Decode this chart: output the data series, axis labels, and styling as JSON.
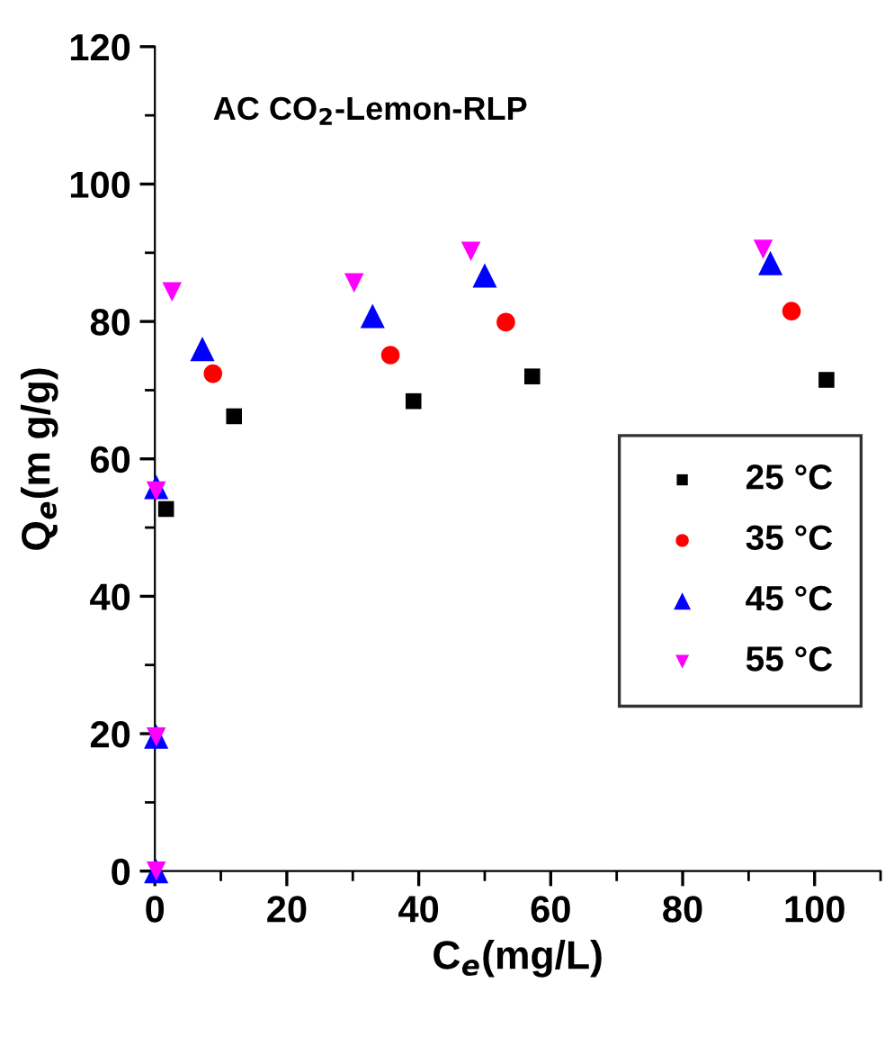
{
  "chart_data": {
    "type": "scatter",
    "title": "AC CO$_{2}$-Lemon-RLP",
    "xlabel": "C$_{e}$(mg/L)",
    "ylabel": "Q$_{e}$(m g/g)",
    "xlim": [
      0,
      110
    ],
    "ylim": [
      0,
      120
    ],
    "xticks": [
      0,
      20,
      40,
      60,
      80,
      100
    ],
    "yticks": [
      0,
      20,
      40,
      60,
      80,
      100,
      120
    ],
    "grid": false,
    "legend": "bottom right",
    "series": [
      {
        "name": "25 °C",
        "color": "#000000",
        "marker": "square",
        "x": [
          1.7,
          12,
          39.2,
          57.2,
          101.8
        ],
        "values": [
          52.7,
          66.2,
          68.4,
          72,
          71.5
        ]
      },
      {
        "name": "35 °C",
        "color": "#ff0000",
        "marker": "circle",
        "x": [
          8.8,
          35.7,
          53.2,
          96.5
        ],
        "values": [
          72.4,
          75.1,
          79.9,
          81.5
        ]
      },
      {
        "name": "45 °C",
        "color": "#0000ff",
        "marker": "triangle",
        "x": [
          0.2,
          0.2,
          0.2,
          7.2,
          33,
          50,
          93.3
        ],
        "values": [
          0,
          19.6,
          55.9,
          76,
          80.8,
          86.7,
          88.5
        ]
      },
      {
        "name": "55 °C",
        "color": "#ff00ff",
        "marker": "triangle_down",
        "x": [
          0.2,
          0.2,
          0.2,
          2.6,
          30.2,
          47.9,
          92.2
        ],
        "values": [
          0,
          19.5,
          55.3,
          84.3,
          85.6,
          90.2,
          90.5
        ]
      }
    ]
  }
}
